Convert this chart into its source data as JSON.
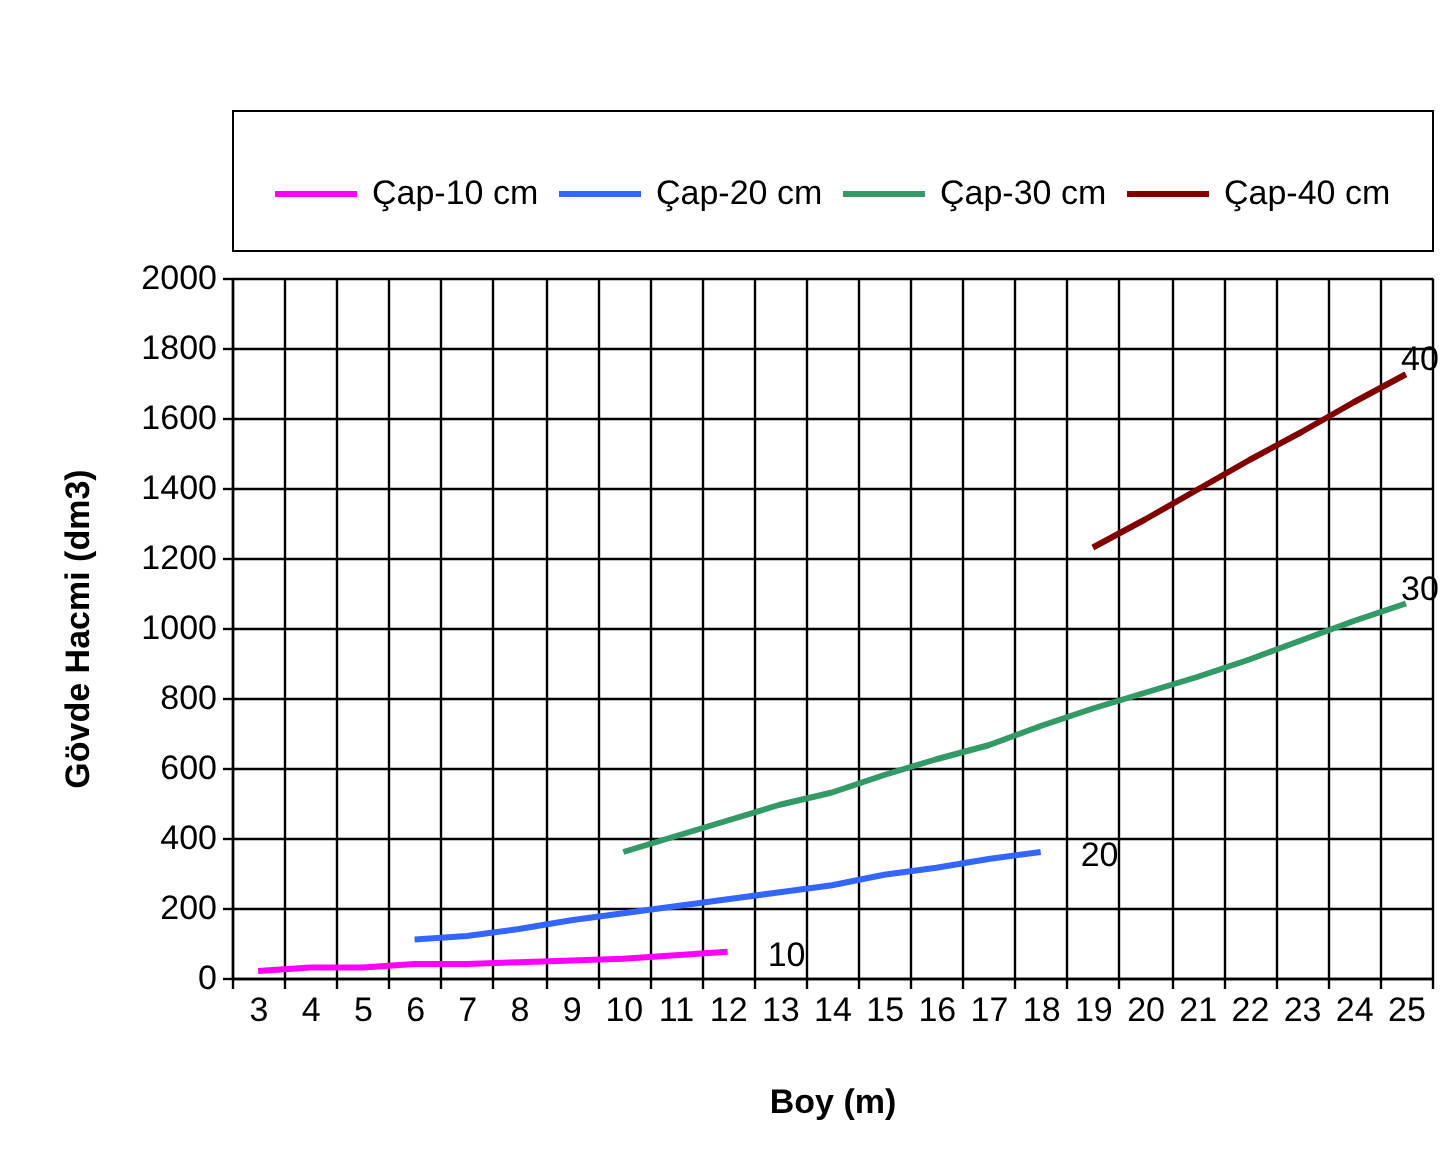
{
  "chart_data": {
    "type": "line",
    "xlabel": "Boy (m)",
    "ylabel": "Gövde Hacmi (dm3)",
    "categories": [
      "3",
      "4",
      "5",
      "6",
      "7",
      "8",
      "9",
      "10",
      "11",
      "12",
      "13",
      "14",
      "15",
      "16",
      "17",
      "18",
      "19",
      "20",
      "21",
      "22",
      "23",
      "24",
      "25"
    ],
    "series": [
      {
        "name": "Çap-10 cm",
        "color": "#ff00ff",
        "values": [
          20,
          30,
          30,
          40,
          40,
          45,
          50,
          55,
          65,
          75,
          null,
          null,
          null,
          null,
          null,
          null,
          null,
          null,
          null,
          null,
          null,
          null,
          null
        ]
      },
      {
        "name": "Çap-20 cm",
        "color": "#3366ff",
        "values": [
          null,
          null,
          null,
          110,
          120,
          140,
          165,
          185,
          205,
          225,
          245,
          265,
          295,
          315,
          340,
          360,
          null,
          null,
          null,
          null,
          null,
          null,
          null
        ]
      },
      {
        "name": "Çap-30 cm",
        "color": "#339966",
        "values": [
          null,
          null,
          null,
          null,
          null,
          null,
          null,
          360,
          405,
          450,
          495,
          530,
          580,
          625,
          665,
          720,
          770,
          815,
          860,
          910,
          965,
          1020,
          1070
        ]
      },
      {
        "name": "Çap-40 cm",
        "color": "#800000",
        "values": [
          null,
          null,
          null,
          null,
          null,
          null,
          null,
          null,
          null,
          null,
          null,
          null,
          null,
          null,
          null,
          null,
          1230,
          1310,
          1395,
          1480,
          1560,
          1645,
          1725
        ]
      }
    ],
    "ylim": [
      0,
      2000
    ],
    "yticks": [
      0,
      200,
      400,
      600,
      800,
      1000,
      1200,
      1400,
      1600,
      1800,
      2000
    ],
    "grid": true,
    "legend": "top",
    "line_style": "solid",
    "annotations": [
      {
        "text": "10",
        "x": "12",
        "y": 75
      },
      {
        "text": "20",
        "x": "18",
        "y": 360
      },
      {
        "text": "30",
        "x": "25",
        "y": 1070
      },
      {
        "text": "40",
        "x": "25",
        "y": 1725
      }
    ]
  }
}
